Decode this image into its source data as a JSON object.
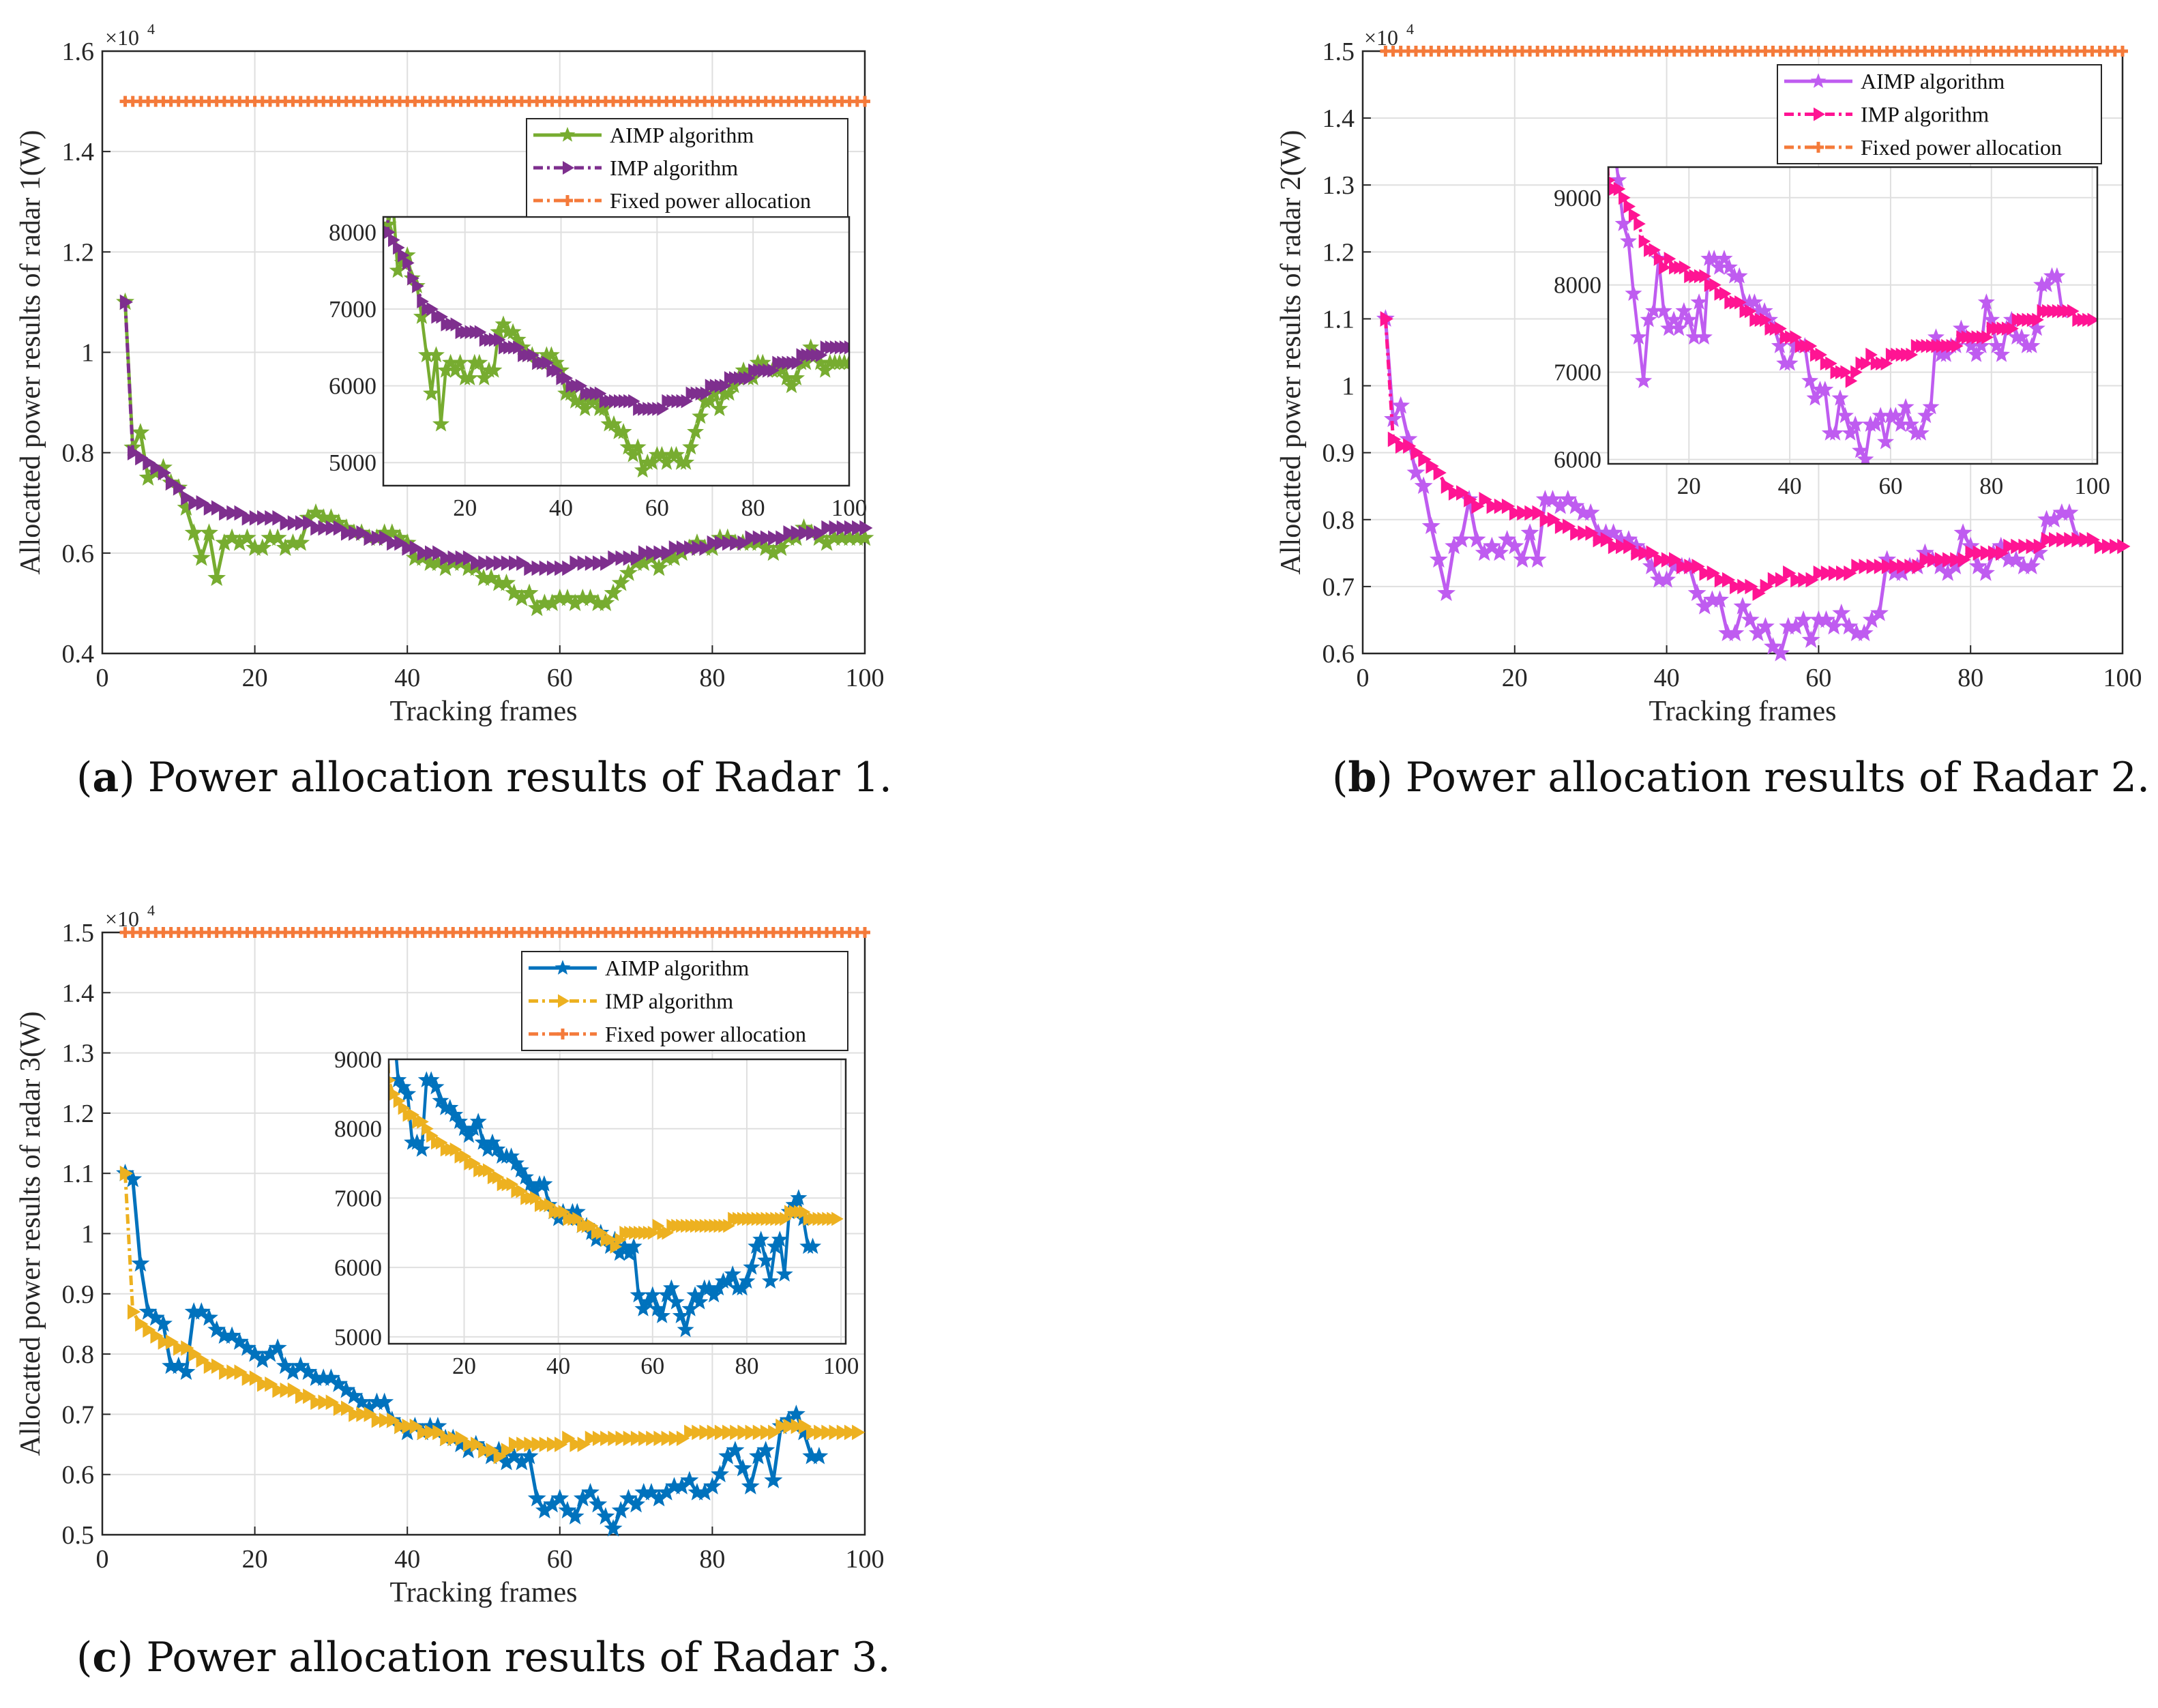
{
  "colors": {
    "fixed": "#f47a3a",
    "panel1_aimp": "#77ac30",
    "panel1_imp": "#7e2f8e",
    "panel2_aimp": "#bf5cf0",
    "panel2_imp": "#ff1493",
    "panel3_aimp": "#0072bd",
    "panel3_imp": "#edb120"
  },
  "panels": [
    {
      "caption_tag": "(a)",
      "caption_text": " Power allocation results of Radar 1.",
      "xlabel": "Tracking frames",
      "ylabel": "Allocatted power results of radar 1(W)",
      "multiplier": "×10",
      "multiplier_exp": "4",
      "xlim": [
        0,
        100
      ],
      "ylim": [
        0.4,
        1.6
      ],
      "xticks": [
        0,
        20,
        40,
        60,
        80,
        100
      ],
      "yticks": [
        0.4,
        0.6,
        0.8,
        1,
        1.2,
        1.4,
        1.6
      ],
      "ytick_labels": [
        "0.4",
        "0.6",
        "0.8",
        "1",
        "1.2",
        "1.4",
        "1.6"
      ],
      "legend": [
        "AIMP algorithm",
        "IMP algorithm",
        "Fixed power allocation"
      ],
      "inset": {
        "xlim": [
          3,
          100
        ],
        "ylim": [
          4700,
          8200
        ],
        "xticks": [
          20,
          40,
          60,
          80,
          100
        ],
        "yticks": [
          5000,
          6000,
          7000,
          8000
        ]
      }
    },
    {
      "caption_tag": "(b)",
      "caption_text": " Power allocation results of Radar 2.",
      "xlabel": "Tracking frames",
      "ylabel": "Allocatted power results of radar 2(W)",
      "multiplier": "×10",
      "multiplier_exp": "4",
      "xlim": [
        0,
        100
      ],
      "ylim": [
        0.6,
        1.5
      ],
      "xticks": [
        0,
        20,
        40,
        60,
        80,
        100
      ],
      "yticks": [
        0.6,
        0.7,
        0.8,
        0.9,
        1,
        1.1,
        1.2,
        1.3,
        1.4,
        1.5
      ],
      "ytick_labels": [
        "0.6",
        "0.7",
        "0.8",
        "0.9",
        "1",
        "1.1",
        "1.2",
        "1.3",
        "1.4",
        "1.5"
      ],
      "legend": [
        "AIMP algorithm",
        "IMP algorithm",
        "Fixed power allocation"
      ],
      "inset": {
        "xlim": [
          4,
          101
        ],
        "ylim": [
          5950,
          9350
        ],
        "xticks": [
          20,
          40,
          60,
          80,
          100
        ],
        "yticks": [
          6000,
          7000,
          8000,
          9000
        ]
      }
    },
    {
      "caption_tag": "(c)",
      "caption_text": " Power allocation results of Radar 3.",
      "xlabel": "Tracking frames",
      "ylabel": "Allocatted power results of radar 3(W)",
      "multiplier": "×10",
      "multiplier_exp": "4",
      "xlim": [
        0,
        100
      ],
      "ylim": [
        0.5,
        1.5
      ],
      "xticks": [
        0,
        20,
        40,
        60,
        80,
        100
      ],
      "yticks": [
        0.5,
        0.6,
        0.7,
        0.8,
        0.9,
        1,
        1.1,
        1.2,
        1.3,
        1.4,
        1.5
      ],
      "ytick_labels": [
        "0.5",
        "0.6",
        "0.7",
        "0.8",
        "0.9",
        "1",
        "1.1",
        "1.2",
        "1.3",
        "1.4",
        "1.5"
      ],
      "legend": [
        "AIMP algorithm",
        "IMP algorithm",
        "Fixed power allocation"
      ],
      "inset": {
        "xlim": [
          4,
          101
        ],
        "ylim": [
          4900,
          9000
        ],
        "xticks": [
          20,
          40,
          60,
          80,
          100
        ],
        "yticks": [
          5000,
          6000,
          7000,
          8000,
          9000
        ]
      }
    }
  ],
  "chart_data": [
    {
      "type": "line",
      "title": "Power allocation results of Radar 1.",
      "xlabel": "Tracking frames",
      "ylabel": "Allocatted power results of radar 1(W)",
      "ylim": [
        4000,
        16000
      ],
      "xlim": [
        0,
        100
      ],
      "series": [
        {
          "name": "AIMP algorithm",
          "x_start": 3,
          "values": [
            11000,
            8100,
            8400,
            7500,
            7600,
            7700,
            7400,
            7300,
            6900,
            6400,
            5900,
            6400,
            5500,
            6200,
            6300,
            6200,
            6300,
            6100,
            6100,
            6300,
            6300,
            6100,
            6200,
            6200,
            6700,
            6800,
            6700,
            6700,
            6600,
            6500,
            6400,
            6400,
            6300,
            6300,
            6400,
            6400,
            6300,
            6200,
            5900,
            5900,
            5800,
            5800,
            5700,
            5800,
            5800,
            5700,
            5700,
            5500,
            5500,
            5400,
            5400,
            5200,
            5100,
            5200,
            4900,
            5000,
            5000,
            5100,
            5100,
            5000,
            5100,
            5100,
            5000,
            5000,
            5200,
            5400,
            5600,
            5800,
            5800,
            5900,
            5700,
            5900,
            5900,
            6000,
            6100,
            6200,
            6100,
            6100,
            6300,
            6300,
            6200,
            6200,
            6200,
            6200,
            6100,
            6000,
            6100,
            6300,
            6300,
            6500,
            6400,
            6300,
            6200,
            6300,
            6300,
            6300,
            6300,
            6300
          ]
        },
        {
          "name": "IMP algorithm",
          "x_start": 3,
          "values": [
            11000,
            8000,
            7900,
            7800,
            7700,
            7600,
            7400,
            7300,
            7100,
            7000,
            7000,
            6900,
            6900,
            6800,
            6800,
            6800,
            6700,
            6700,
            6700,
            6700,
            6700,
            6600,
            6600,
            6600,
            6600,
            6500,
            6500,
            6500,
            6500,
            6400,
            6400,
            6400,
            6300,
            6300,
            6300,
            6200,
            6200,
            6100,
            6100,
            6000,
            6000,
            6000,
            5900,
            5900,
            5900,
            5900,
            5800,
            5800,
            5800,
            5800,
            5800,
            5800,
            5800,
            5700,
            5700,
            5700,
            5700,
            5700,
            5700,
            5800,
            5800,
            5800,
            5800,
            5800,
            5900,
            5900,
            5900,
            5900,
            6000,
            6000,
            6000,
            6000,
            6100,
            6100,
            6100,
            6100,
            6100,
            6200,
            6200,
            6200,
            6200,
            6200,
            6300,
            6300,
            6300,
            6300,
            6300,
            6400,
            6400,
            6400,
            6400,
            6400,
            6500,
            6500,
            6500,
            6500,
            6500,
            6500
          ]
        },
        {
          "name": "Fixed power allocation",
          "x_start": 3,
          "constant": 15000
        }
      ]
    },
    {
      "type": "line",
      "title": "Power allocation results of Radar 2.",
      "xlabel": "Tracking frames",
      "ylabel": "Allocatted power results of radar 2(W)",
      "ylim": [
        6000,
        15000
      ],
      "xlim": [
        0,
        100
      ],
      "series": [
        {
          "name": "AIMP algorithm",
          "x_start": 3,
          "values": [
            11000,
            9500,
            9700,
            9200,
            8700,
            8500,
            7900,
            7400,
            6900,
            7600,
            7700,
            8300,
            7700,
            7500,
            7600,
            7500,
            7700,
            7600,
            7400,
            7800,
            7400,
            8300,
            8300,
            8200,
            8300,
            8200,
            8100,
            8100,
            7800,
            7800,
            7800,
            7700,
            7700,
            7600,
            7500,
            7300,
            7100,
            7100,
            7300,
            7300,
            7300,
            6900,
            6700,
            6800,
            6800,
            6300,
            6300,
            6700,
            6500,
            6300,
            6400,
            6100,
            6000,
            6400,
            6400,
            6500,
            6200,
            6500,
            6500,
            6400,
            6600,
            6400,
            6300,
            6300,
            6500,
            6600,
            7400,
            7200,
            7200,
            7300,
            7300,
            7500,
            7400,
            7300,
            7200,
            7300,
            7800,
            7600,
            7300,
            7200,
            7500,
            7600,
            7400,
            7400,
            7300,
            7300,
            7500,
            8000,
            8000,
            8100,
            8100,
            7700
          ]
        },
        {
          "name": "IMP algorithm",
          "x_start": 3,
          "values": [
            11000,
            9200,
            9100,
            9100,
            9000,
            8900,
            8800,
            8700,
            8500,
            8400,
            8400,
            8300,
            8200,
            8300,
            8200,
            8200,
            8200,
            8100,
            8100,
            8100,
            8100,
            8000,
            8000,
            7900,
            7900,
            7800,
            7800,
            7800,
            7700,
            7700,
            7600,
            7600,
            7600,
            7500,
            7500,
            7500,
            7400,
            7400,
            7400,
            7300,
            7300,
            7300,
            7200,
            7200,
            7100,
            7100,
            7000,
            7000,
            7000,
            6900,
            7000,
            7100,
            7100,
            7200,
            7100,
            7100,
            7100,
            7200,
            7200,
            7200,
            7200,
            7200,
            7300,
            7300,
            7300,
            7300,
            7300,
            7300,
            7300,
            7300,
            7300,
            7400,
            7400,
            7400,
            7400,
            7400,
            7400,
            7500,
            7500,
            7500,
            7500,
            7500,
            7600,
            7600,
            7600,
            7600,
            7600,
            7700,
            7700,
            7700,
            7700,
            7700,
            7700,
            7700,
            7600,
            7600,
            7600,
            7600
          ]
        },
        {
          "name": "Fixed power allocation",
          "x_start": 3,
          "constant": 15000
        }
      ]
    },
    {
      "type": "line",
      "title": "Power allocation results of Radar 3.",
      "xlabel": "Tracking frames",
      "ylabel": "Allocatted power results of radar 3(W)",
      "ylim": [
        5000,
        15000
      ],
      "xlim": [
        0,
        100
      ],
      "series": [
        {
          "name": "AIMP algorithm",
          "x_start": 3,
          "values": [
            11000,
            10900,
            9500,
            8700,
            8600,
            8500,
            7800,
            7800,
            7700,
            8700,
            8700,
            8600,
            8400,
            8300,
            8300,
            8200,
            8100,
            8000,
            7900,
            8000,
            8100,
            7800,
            7700,
            7800,
            7700,
            7600,
            7600,
            7600,
            7500,
            7400,
            7300,
            7200,
            7100,
            7200,
            7200,
            6900,
            6800,
            6700,
            6800,
            6700,
            6800,
            6800,
            6600,
            6600,
            6500,
            6400,
            6500,
            6400,
            6300,
            6400,
            6200,
            6300,
            6200,
            6300,
            5600,
            5400,
            5500,
            5600,
            5400,
            5300,
            5600,
            5700,
            5500,
            5300,
            5100,
            5400,
            5600,
            5500,
            5700,
            5700,
            5600,
            5700,
            5800,
            5800,
            5900,
            5700,
            5700,
            5800,
            6000,
            6300,
            6400,
            6100,
            5800,
            6300,
            6400,
            5900,
            6800,
            6900,
            7000,
            6700,
            6300,
            6300
          ]
        },
        {
          "name": "IMP algorithm",
          "x_start": 3,
          "values": [
            11000,
            8700,
            8500,
            8400,
            8300,
            8200,
            8200,
            8100,
            8100,
            8000,
            7900,
            7800,
            7800,
            7700,
            7700,
            7700,
            7600,
            7600,
            7500,
            7500,
            7400,
            7400,
            7400,
            7300,
            7300,
            7200,
            7200,
            7200,
            7100,
            7100,
            7000,
            7000,
            7000,
            6900,
            6900,
            6900,
            6800,
            6800,
            6800,
            6700,
            6700,
            6700,
            6600,
            6600,
            6600,
            6500,
            6500,
            6400,
            6400,
            6300,
            6400,
            6500,
            6500,
            6500,
            6500,
            6500,
            6500,
            6500,
            6600,
            6500,
            6500,
            6600,
            6600,
            6600,
            6600,
            6600,
            6600,
            6600,
            6600,
            6600,
            6600,
            6600,
            6600,
            6600,
            6700,
            6700,
            6700,
            6700,
            6700,
            6700,
            6700,
            6700,
            6700,
            6700,
            6700,
            6700,
            6800,
            6800,
            6800,
            6800,
            6700,
            6700,
            6700,
            6700,
            6700,
            6700,
            6700
          ]
        },
        {
          "name": "Fixed power allocation",
          "x_start": 3,
          "constant": 15000
        }
      ]
    }
  ]
}
